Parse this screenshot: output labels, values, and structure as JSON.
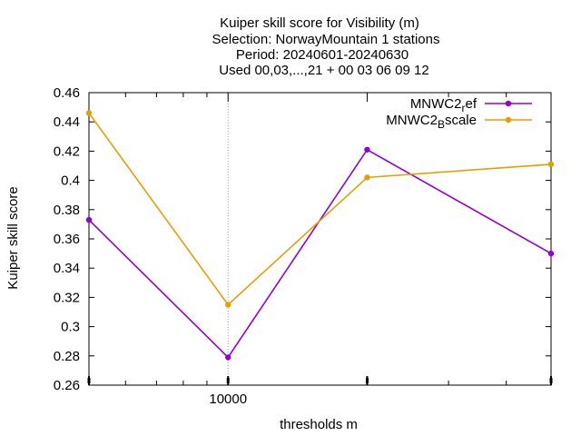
{
  "chart_data": {
    "type": "line",
    "title_lines": [
      "Kuiper skill score  for Visibility (m)",
      "Selection: NorwayMountain       1 stations",
      "Period: 20240601-20240630",
      "Used 00,03,...,21 + 00 03 06 09 12"
    ],
    "xlabel": "thresholds m",
    "ylabel": "Kuiper skill score",
    "x_scale": "log",
    "x": [
      5000,
      10000,
      20000,
      50000
    ],
    "xlim": [
      5000,
      50000
    ],
    "x_tick_labels": [
      {
        "value": 10000,
        "label": "10000"
      }
    ],
    "ylim": [
      0.26,
      0.46
    ],
    "y_ticks": [
      0.26,
      0.28,
      0.3,
      0.32,
      0.34,
      0.36,
      0.38,
      0.4,
      0.42,
      0.44,
      0.46
    ],
    "y_tick_labels": [
      "0.26",
      "0.28",
      "0.3",
      "0.32",
      "0.34",
      "0.36",
      "0.38",
      "0.4",
      "0.42",
      "0.44",
      "0.46"
    ],
    "grid": "x-major only (dotted)",
    "legend_position": "top-right",
    "series": [
      {
        "name_main": "MNWC2",
        "name_sub": "r",
        "name_rest": "ef",
        "color": "#9400d3",
        "values": [
          0.373,
          0.279,
          0.421,
          0.35
        ]
      },
      {
        "name_main": "MNWC2",
        "name_sub": "B",
        "name_rest": "scale",
        "color": "#e69f00",
        "values": [
          0.446,
          0.315,
          0.402,
          0.411
        ]
      }
    ]
  }
}
